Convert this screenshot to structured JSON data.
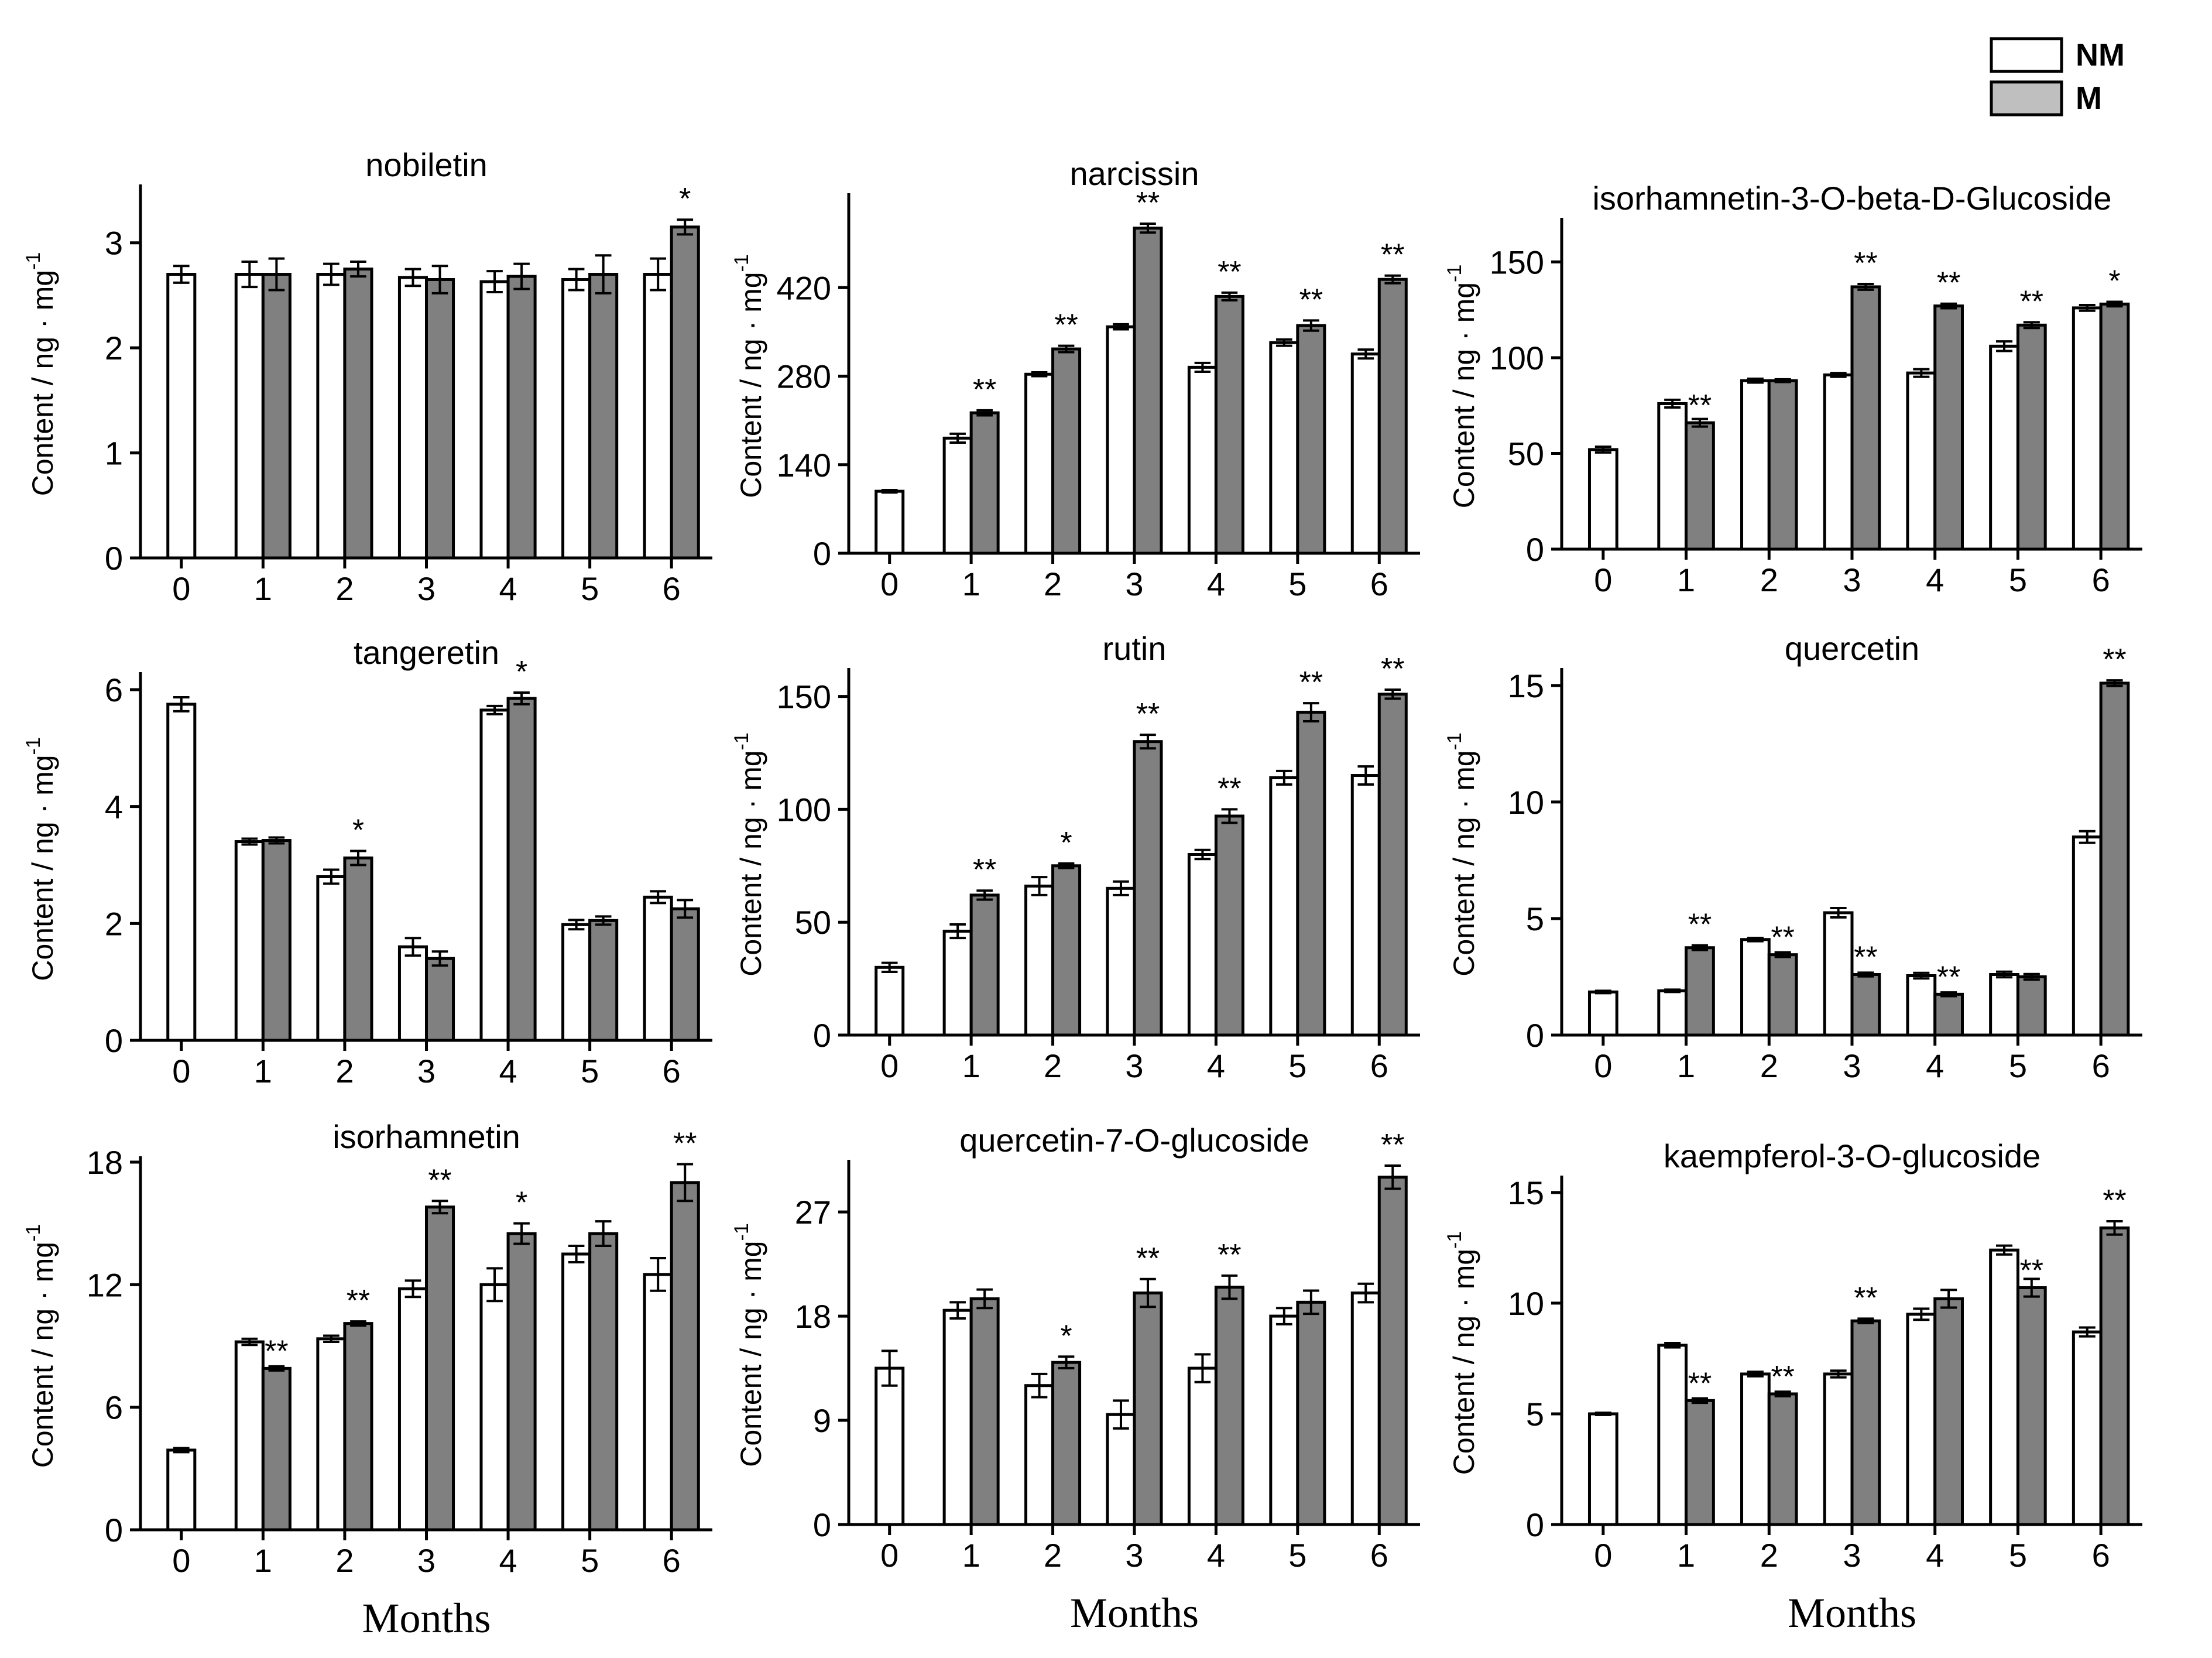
{
  "legend": {
    "nm_label": "NM",
    "m_label": "M"
  },
  "colors": {
    "nm": "#ffffff",
    "m": "#808080",
    "stroke": "#000000"
  },
  "chart_data": [
    {
      "type": "bar",
      "title": "nobiletin",
      "xlabel": "",
      "ylabel": "Content / ng · mg",
      "ylabel_sup": "-1",
      "categories": [
        "0",
        "1",
        "2",
        "3",
        "4",
        "5",
        "6"
      ],
      "ylim": [
        0,
        3.5
      ],
      "yticks": [
        0,
        1,
        2,
        3
      ],
      "series": [
        {
          "name": "NM",
          "values": [
            2.7,
            2.7,
            2.7,
            2.67,
            2.63,
            2.65,
            2.7
          ],
          "errors": [
            0.08,
            0.12,
            0.1,
            0.08,
            0.1,
            0.1,
            0.15
          ]
        },
        {
          "name": "M",
          "values": [
            null,
            2.7,
            2.75,
            2.65,
            2.68,
            2.7,
            3.15
          ],
          "errors": [
            null,
            0.15,
            0.07,
            0.13,
            0.12,
            0.18,
            0.07
          ]
        }
      ],
      "annotations": [
        "",
        "",
        "",
        "",
        "",
        "",
        "*"
      ]
    },
    {
      "type": "bar",
      "title": "narcissin",
      "xlabel": "",
      "ylabel": "Content / ng · mg",
      "ylabel_sup": "-1",
      "categories": [
        "0",
        "1",
        "2",
        "3",
        "4",
        "5",
        "6"
      ],
      "ylim": [
        0,
        560
      ],
      "yticks": [
        0,
        140,
        280,
        420
      ],
      "series": [
        {
          "name": "NM",
          "values": [
            98,
            182,
            283,
            358,
            294,
            333,
            315
          ],
          "errors": [
            2,
            7,
            3,
            4,
            7,
            5,
            7
          ]
        },
        {
          "name": "M",
          "values": [
            null,
            222,
            323,
            514,
            406,
            360,
            433
          ],
          "errors": [
            null,
            4,
            5,
            7,
            6,
            8,
            6
          ]
        }
      ],
      "annotations": [
        "",
        "**",
        "**",
        "**",
        "**",
        "**",
        "**"
      ]
    },
    {
      "type": "bar",
      "title": "isorhamnetin-3-O-beta-D-Glucoside",
      "xlabel": "",
      "ylabel": "Content / ng · mg",
      "ylabel_sup": "-1",
      "categories": [
        "0",
        "1",
        "2",
        "3",
        "4",
        "5",
        "6"
      ],
      "ylim": [
        0,
        170
      ],
      "yticks": [
        0,
        50,
        100,
        150
      ],
      "series": [
        {
          "name": "NM",
          "values": [
            52,
            76,
            88,
            91,
            92,
            106,
            126
          ],
          "errors": [
            1.5,
            2,
            1,
            1,
            2,
            2.5,
            1.5
          ]
        },
        {
          "name": "M",
          "values": [
            null,
            66,
            88,
            137,
            127,
            117,
            128
          ],
          "errors": [
            null,
            2,
            0.7,
            1.5,
            1.2,
            1.5,
            1.2
          ]
        }
      ],
      "annotations": [
        "",
        "**",
        "",
        "**",
        "**",
        "**",
        "*"
      ]
    },
    {
      "type": "bar",
      "title": "tangeretin",
      "xlabel": "",
      "ylabel": "Content / ng · mg",
      "ylabel_sup": "-1",
      "categories": [
        "0",
        "1",
        "2",
        "3",
        "4",
        "5",
        "6"
      ],
      "ylim": [
        0,
        6.2
      ],
      "yticks": [
        0,
        2,
        4,
        6
      ],
      "series": [
        {
          "name": "NM",
          "values": [
            5.75,
            3.4,
            2.8,
            1.6,
            5.65,
            1.98,
            2.45
          ],
          "errors": [
            0.12,
            0.05,
            0.12,
            0.15,
            0.07,
            0.08,
            0.1
          ]
        },
        {
          "name": "M",
          "values": [
            null,
            3.42,
            3.12,
            1.4,
            5.85,
            2.05,
            2.25
          ],
          "errors": [
            null,
            0.05,
            0.12,
            0.12,
            0.1,
            0.07,
            0.15
          ]
        }
      ],
      "annotations": [
        "",
        "",
        "*",
        "",
        "*",
        "",
        ""
      ]
    },
    {
      "type": "bar",
      "title": "rutin",
      "xlabel": "",
      "ylabel": "Content / ng · mg",
      "ylabel_sup": "-1",
      "categories": [
        "0",
        "1",
        "2",
        "3",
        "4",
        "5",
        "6"
      ],
      "ylim": [
        0,
        160
      ],
      "yticks": [
        0,
        50,
        100,
        150
      ],
      "series": [
        {
          "name": "NM",
          "values": [
            30,
            46,
            66,
            65,
            80,
            114,
            115
          ],
          "errors": [
            2,
            3,
            4,
            3,
            2,
            3,
            4
          ]
        },
        {
          "name": "M",
          "values": [
            null,
            62,
            75,
            130,
            97,
            143,
            151
          ],
          "errors": [
            null,
            2,
            1,
            3,
            3,
            4,
            2
          ]
        }
      ],
      "annotations": [
        "",
        "**",
        "*",
        "**",
        "**",
        "**",
        "**"
      ]
    },
    {
      "type": "bar",
      "title": "quercetin",
      "xlabel": "",
      "ylabel": "Content / ng · mg",
      "ylabel_sup": "-1",
      "categories": [
        "0",
        "1",
        "2",
        "3",
        "4",
        "5",
        "6"
      ],
      "ylim": [
        0,
        15.5
      ],
      "yticks": [
        0,
        5,
        10,
        15
      ],
      "series": [
        {
          "name": "NM",
          "values": [
            1.85,
            1.9,
            4.1,
            5.25,
            2.55,
            2.6,
            8.5
          ],
          "errors": [
            0.05,
            0.05,
            0.07,
            0.2,
            0.12,
            0.12,
            0.25
          ]
        },
        {
          "name": "M",
          "values": [
            null,
            3.75,
            3.45,
            2.6,
            1.75,
            2.5,
            15.1
          ],
          "errors": [
            null,
            0.1,
            0.1,
            0.08,
            0.08,
            0.12,
            0.12
          ]
        }
      ],
      "annotations": [
        "",
        "**",
        "**",
        "**",
        "**",
        "",
        "**"
      ]
    },
    {
      "type": "bar",
      "title": "isorhamnetin",
      "xlabel": "Months",
      "ylabel": "Content / ng · mg",
      "ylabel_sup": "-1",
      "categories": [
        "0",
        "1",
        "2",
        "3",
        "4",
        "5",
        "6"
      ],
      "ylim": [
        0,
        18
      ],
      "yticks": [
        0,
        6,
        12,
        18
      ],
      "series": [
        {
          "name": "NM",
          "values": [
            3.9,
            9.2,
            9.35,
            11.8,
            12,
            13.5,
            12.5
          ],
          "errors": [
            0.1,
            0.15,
            0.15,
            0.4,
            0.8,
            0.4,
            0.8
          ]
        },
        {
          "name": "M",
          "values": [
            null,
            7.9,
            10.1,
            15.8,
            14.5,
            14.5,
            17
          ],
          "errors": [
            null,
            0.1,
            0.1,
            0.3,
            0.5,
            0.6,
            0.9
          ]
        }
      ],
      "annotations": [
        "",
        "**",
        "**",
        "**",
        "*",
        "",
        "**"
      ]
    },
    {
      "type": "bar",
      "title": "quercetin-7-O-glucoside",
      "xlabel": "Months",
      "ylabel": "Content / ng · mg",
      "ylabel_sup": "-1",
      "categories": [
        "0",
        "1",
        "2",
        "3",
        "4",
        "5",
        "6"
      ],
      "ylim": [
        0,
        31
      ],
      "yticks": [
        0,
        9,
        18,
        27
      ],
      "series": [
        {
          "name": "NM",
          "values": [
            13.5,
            18.5,
            12,
            9.5,
            13.5,
            18,
            20
          ],
          "errors": [
            1.5,
            0.7,
            1,
            1.2,
            1.2,
            0.7,
            0.8
          ]
        },
        {
          "name": "M",
          "values": [
            null,
            19.5,
            14,
            20,
            20.5,
            19.2,
            30
          ],
          "errors": [
            null,
            0.8,
            0.5,
            1.2,
            1,
            1,
            1
          ]
        }
      ],
      "annotations": [
        "",
        "",
        "*",
        "**",
        "**",
        "",
        "**"
      ]
    },
    {
      "type": "bar",
      "title": "kaempferol-3-O-glucoside",
      "xlabel": "Months",
      "ylabel": "Content / ng · mg",
      "ylabel_sup": "-1",
      "categories": [
        "0",
        "1",
        "2",
        "3",
        "4",
        "5",
        "6"
      ],
      "ylim": [
        0,
        15.5
      ],
      "yticks": [
        0,
        5,
        10,
        15
      ],
      "series": [
        {
          "name": "NM",
          "values": [
            5,
            8.1,
            6.8,
            6.8,
            9.5,
            12.4,
            8.7
          ],
          "errors": [
            0.05,
            0.1,
            0.1,
            0.15,
            0.25,
            0.2,
            0.2
          ]
        },
        {
          "name": "M",
          "values": [
            null,
            5.6,
            5.9,
            9.2,
            10.2,
            10.7,
            13.4
          ],
          "errors": [
            null,
            0.1,
            0.1,
            0.1,
            0.4,
            0.4,
            0.3
          ]
        }
      ],
      "annotations": [
        "",
        "**",
        "**",
        "**",
        "",
        "**",
        "**"
      ]
    }
  ]
}
